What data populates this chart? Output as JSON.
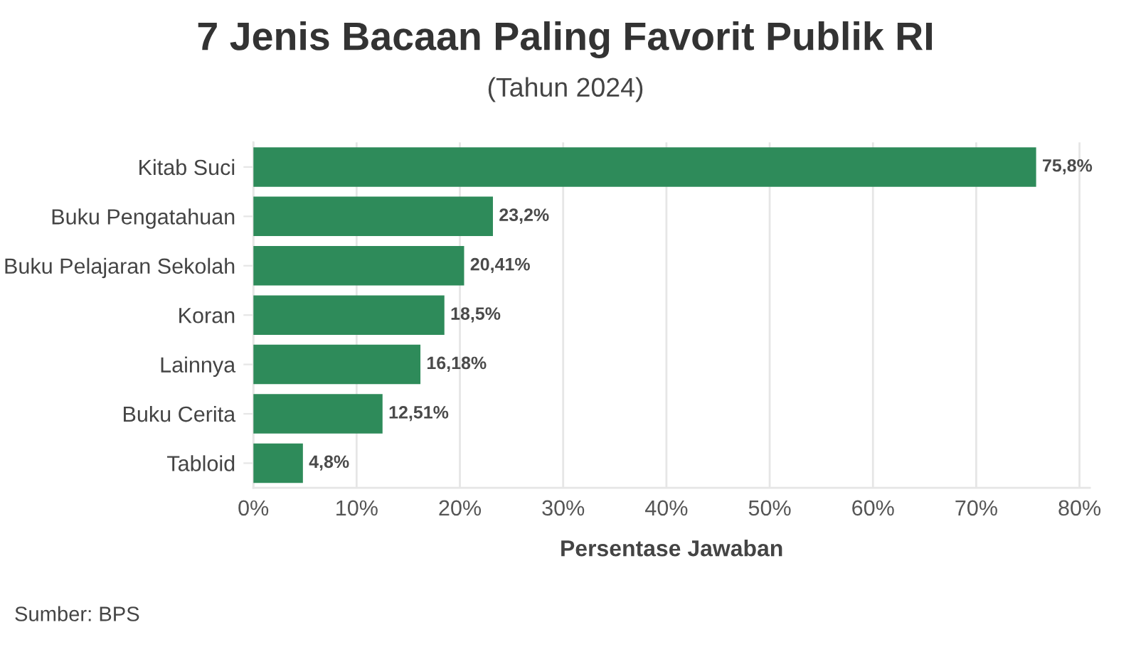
{
  "chart_data": {
    "type": "bar",
    "orientation": "horizontal",
    "title": "7 Jenis Bacaan Paling Favorit Publik RI",
    "subtitle": "(Tahun 2024)",
    "xlabel": "Persentase Jawaban",
    "categories": [
      "Kitab Suci",
      "Buku Pengatahuan",
      "Buku Pelajaran Sekolah",
      "Koran",
      "Lainnya",
      "Buku Cerita",
      "Tabloid"
    ],
    "values": [
      75.8,
      23.2,
      20.41,
      18.5,
      16.18,
      12.51,
      4.8
    ],
    "value_labels": [
      "75,8%",
      "23,2%",
      "20,41%",
      "18,5%",
      "16,18%",
      "12,51%",
      "4,8%"
    ],
    "color": "#2e8b5a",
    "xlim": [
      0,
      81
    ],
    "xticks": [
      {
        "value": 0,
        "label": "0%"
      },
      {
        "value": 10,
        "label": "10%"
      },
      {
        "value": 20,
        "label": "20%"
      },
      {
        "value": 30,
        "label": "30%"
      },
      {
        "value": 40,
        "label": "40%"
      },
      {
        "value": 50,
        "label": "50%"
      },
      {
        "value": 60,
        "label": "60%"
      },
      {
        "value": 70,
        "label": "70%"
      },
      {
        "value": 80,
        "label": "80%"
      }
    ],
    "grid": "x",
    "legend": false,
    "annotations": [
      "Sumber: BPS"
    ]
  }
}
